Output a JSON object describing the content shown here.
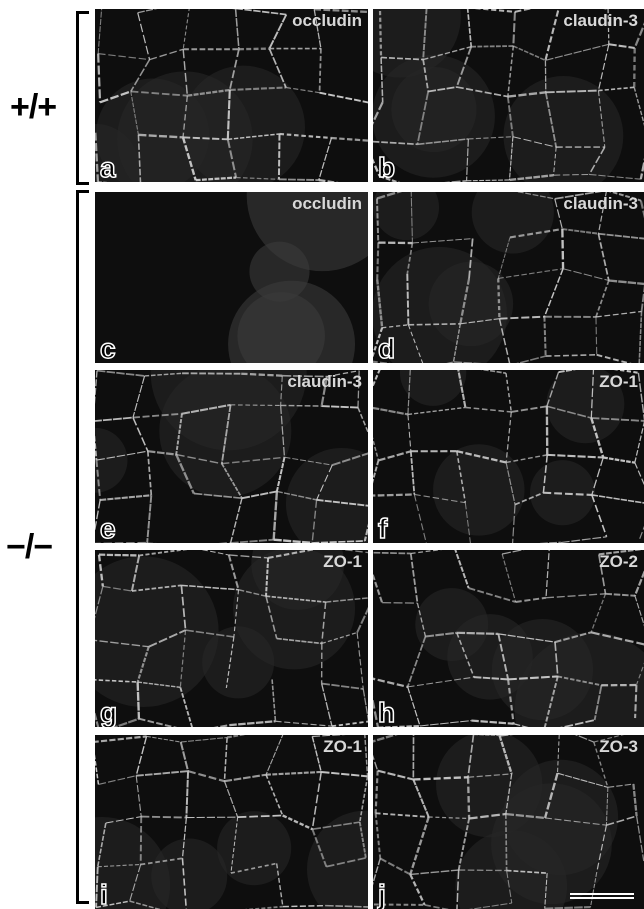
{
  "figure": {
    "groups": [
      {
        "label": "+/+"
      },
      {
        "label": "−/−"
      }
    ],
    "panels": [
      {
        "letter": "a",
        "stain": "occludin"
      },
      {
        "letter": "b",
        "stain": "claudin-3"
      },
      {
        "letter": "c",
        "stain": "occludin"
      },
      {
        "letter": "d",
        "stain": "claudin-3"
      },
      {
        "letter": "e",
        "stain": "claudin-3"
      },
      {
        "letter": "f",
        "stain": "ZO-1"
      },
      {
        "letter": "g",
        "stain": "ZO-1"
      },
      {
        "letter": "h",
        "stain": "ZO-2"
      },
      {
        "letter": "i",
        "stain": "ZO-1"
      },
      {
        "letter": "j",
        "stain": "ZO-3"
      }
    ]
  }
}
